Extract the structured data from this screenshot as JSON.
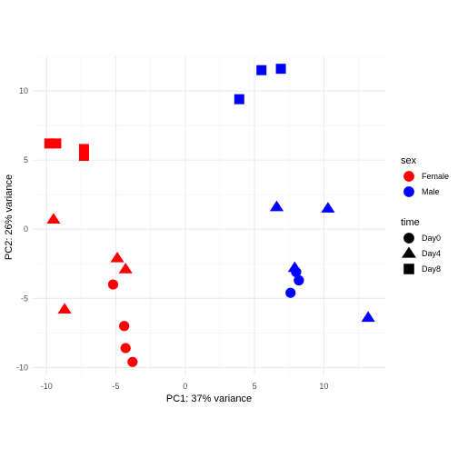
{
  "chart_data": {
    "type": "scatter",
    "xlabel": "PC1: 37% variance",
    "ylabel": "PC2: 26% variance",
    "xlim": [
      -11,
      14.5
    ],
    "ylim": [
      -10.5,
      12.5
    ],
    "x_ticks": [
      -10,
      -5,
      0,
      5,
      10
    ],
    "x_tick_labels": [
      "-10",
      "-5",
      "0",
      "5",
      "10"
    ],
    "y_ticks": [
      -10,
      -5,
      0,
      5,
      10
    ],
    "y_tick_labels": [
      "-10",
      "-5",
      "0",
      "5",
      "10"
    ],
    "grid": true,
    "legend_position": "right",
    "legends": [
      {
        "title": "sex",
        "entries": [
          {
            "label": "Female",
            "color": "#ff0000",
            "shape": "circle"
          },
          {
            "label": "Male",
            "color": "#0000ff",
            "shape": "circle"
          }
        ]
      },
      {
        "title": "time",
        "entries": [
          {
            "label": "Day0",
            "color": "#000000",
            "shape": "circle"
          },
          {
            "label": "Day4",
            "color": "#000000",
            "shape": "triangle"
          },
          {
            "label": "Day8",
            "color": "#000000",
            "shape": "square"
          }
        ]
      }
    ],
    "colors": {
      "Female": "#ff0000",
      "Male": "#0000ff"
    },
    "points": [
      {
        "x": -9.8,
        "y": 6.2,
        "sex": "Female",
        "time": "Day8"
      },
      {
        "x": -9.3,
        "y": 6.2,
        "sex": "Female",
        "time": "Day8"
      },
      {
        "x": -7.3,
        "y": 5.8,
        "sex": "Female",
        "time": "Day8"
      },
      {
        "x": -7.3,
        "y": 5.3,
        "sex": "Female",
        "time": "Day8"
      },
      {
        "x": -9.5,
        "y": 0.7,
        "sex": "Female",
        "time": "Day4"
      },
      {
        "x": -4.9,
        "y": -2.1,
        "sex": "Female",
        "time": "Day4"
      },
      {
        "x": -4.3,
        "y": -2.9,
        "sex": "Female",
        "time": "Day4"
      },
      {
        "x": -8.7,
        "y": -5.8,
        "sex": "Female",
        "time": "Day4"
      },
      {
        "x": -5.2,
        "y": -4.0,
        "sex": "Female",
        "time": "Day0"
      },
      {
        "x": -4.4,
        "y": -7.0,
        "sex": "Female",
        "time": "Day0"
      },
      {
        "x": -4.3,
        "y": -8.6,
        "sex": "Female",
        "time": "Day0"
      },
      {
        "x": -3.8,
        "y": -9.6,
        "sex": "Female",
        "time": "Day0"
      },
      {
        "x": 3.9,
        "y": 9.4,
        "sex": "Male",
        "time": "Day8"
      },
      {
        "x": 5.5,
        "y": 11.5,
        "sex": "Male",
        "time": "Day8"
      },
      {
        "x": 6.9,
        "y": 11.6,
        "sex": "Male",
        "time": "Day8"
      },
      {
        "x": 6.6,
        "y": 1.6,
        "sex": "Male",
        "time": "Day4"
      },
      {
        "x": 10.3,
        "y": 1.5,
        "sex": "Male",
        "time": "Day4"
      },
      {
        "x": 7.9,
        "y": -2.8,
        "sex": "Male",
        "time": "Day4"
      },
      {
        "x": 13.2,
        "y": -6.4,
        "sex": "Male",
        "time": "Day4"
      },
      {
        "x": 8.0,
        "y": -3.1,
        "sex": "Male",
        "time": "Day0"
      },
      {
        "x": 8.2,
        "y": -3.7,
        "sex": "Male",
        "time": "Day0"
      },
      {
        "x": 7.6,
        "y": -4.6,
        "sex": "Male",
        "time": "Day0"
      }
    ]
  }
}
